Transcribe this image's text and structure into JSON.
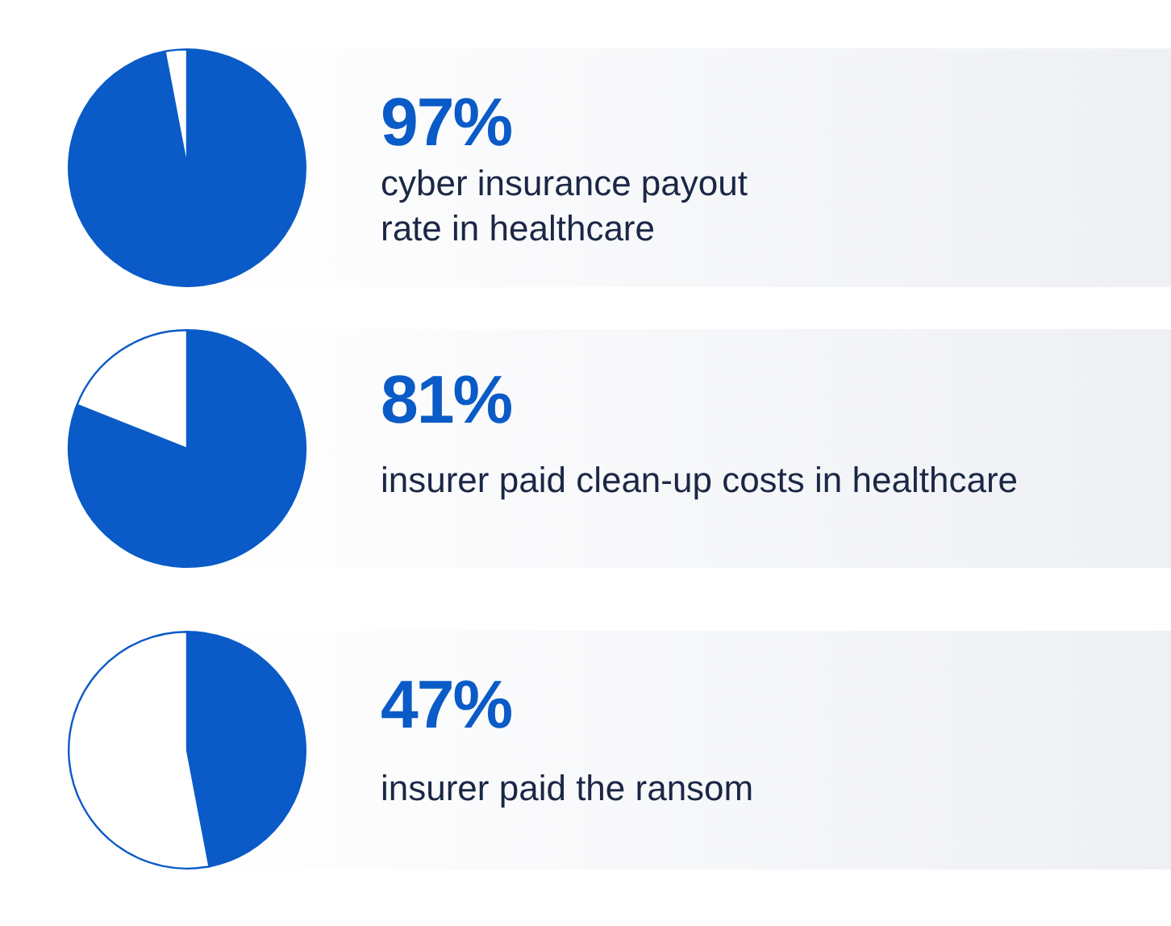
{
  "chart_data": [
    {
      "type": "pie",
      "title": "cyber insurance payout rate in healthcare",
      "categories": [
        null,
        null
      ],
      "values": [
        97,
        3
      ],
      "colors": [
        "#0a5bc7",
        "#ffffff"
      ],
      "value_labels": [
        "97%",
        null
      ],
      "legend": false
    },
    {
      "type": "pie",
      "title": "insurer paid clean-up costs in healthcare",
      "categories": [
        null,
        null
      ],
      "values": [
        81,
        19
      ],
      "colors": [
        "#0a5bc7",
        "#ffffff"
      ],
      "value_labels": [
        "81%",
        null
      ],
      "legend": false
    },
    {
      "type": "pie",
      "title": "insurer paid the ransom",
      "categories": [
        null,
        null
      ],
      "values": [
        47,
        53
      ],
      "colors": [
        "#0a5bc7",
        "#ffffff"
      ],
      "value_labels": [
        "47%",
        null
      ],
      "legend": false
    }
  ]
}
